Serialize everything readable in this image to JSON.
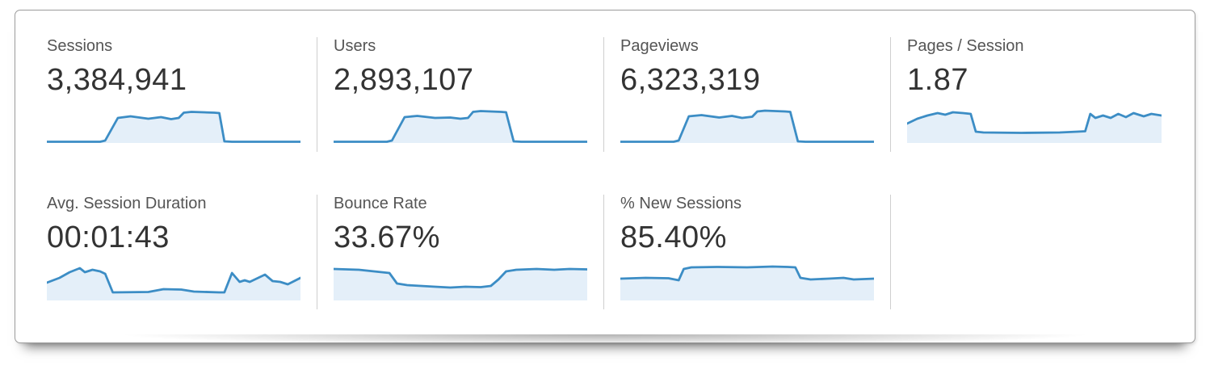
{
  "colors": {
    "spark_stroke": "#3C8DC5",
    "spark_fill": "#E4EFF9",
    "divider": "#cfcfcf",
    "label_text": "#555555",
    "value_text": "#333333"
  },
  "rows": [
    {
      "cards": [
        {
          "label": "Sessions",
          "value": "3,384,941",
          "spark": [
            [
              0,
              46.5
            ],
            [
              21,
              46.5
            ],
            [
              23,
              45
            ],
            [
              28,
              17
            ],
            [
              33,
              15
            ],
            [
              40,
              18
            ],
            [
              45,
              16
            ],
            [
              49,
              18.5
            ],
            [
              52,
              17
            ],
            [
              54,
              10.5
            ],
            [
              57,
              9.5
            ],
            [
              66,
              10.5
            ],
            [
              68,
              11
            ],
            [
              70,
              46
            ],
            [
              73,
              46.5
            ],
            [
              100,
              46.5
            ]
          ]
        },
        {
          "label": "Users",
          "value": "2,893,107",
          "spark": [
            [
              0,
              46.5
            ],
            [
              21,
              46.5
            ],
            [
              23,
              45
            ],
            [
              28,
              16
            ],
            [
              33,
              14.5
            ],
            [
              40,
              17
            ],
            [
              46,
              16.5
            ],
            [
              50,
              18
            ],
            [
              53,
              17
            ],
            [
              55,
              9.5
            ],
            [
              58,
              8.5
            ],
            [
              66,
              9.5
            ],
            [
              68,
              10
            ],
            [
              71,
              46
            ],
            [
              74,
              46.5
            ],
            [
              100,
              46.5
            ]
          ]
        },
        {
          "label": "Pageviews",
          "value": "6,323,319",
          "spark": [
            [
              0,
              46.5
            ],
            [
              21,
              46.5
            ],
            [
              23,
              45
            ],
            [
              27,
              15
            ],
            [
              32,
              13.5
            ],
            [
              39,
              16.5
            ],
            [
              44,
              14.5
            ],
            [
              48,
              17
            ],
            [
              52,
              15.5
            ],
            [
              54,
              9
            ],
            [
              57,
              8
            ],
            [
              65,
              9
            ],
            [
              67,
              9.5
            ],
            [
              70,
              46
            ],
            [
              73,
              46.5
            ],
            [
              100,
              46.5
            ]
          ]
        },
        {
          "label": "Pages / Session",
          "value": "1.87",
          "spark": [
            [
              0,
              24
            ],
            [
              4,
              18
            ],
            [
              8,
              14
            ],
            [
              12,
              11
            ],
            [
              15,
              13
            ],
            [
              18,
              10
            ],
            [
              22,
              11
            ],
            [
              25,
              12
            ],
            [
              27,
              34
            ],
            [
              30,
              35
            ],
            [
              45,
              35.5
            ],
            [
              60,
              35
            ],
            [
              67,
              34
            ],
            [
              70,
              33.5
            ],
            [
              72,
              12
            ],
            [
              74,
              17
            ],
            [
              77,
              14
            ],
            [
              80,
              17
            ],
            [
              83,
              12
            ],
            [
              86,
              16
            ],
            [
              89,
              11
            ],
            [
              93,
              15
            ],
            [
              96,
              12
            ],
            [
              100,
              14
            ]
          ]
        }
      ]
    },
    {
      "cards": [
        {
          "label": "Avg. Session Duration",
          "value": "00:01:43",
          "spark": [
            [
              0,
              26
            ],
            [
              5,
              20
            ],
            [
              9,
              13
            ],
            [
              13,
              8
            ],
            [
              15,
              13
            ],
            [
              18,
              10
            ],
            [
              21,
              12
            ],
            [
              23,
              15
            ],
            [
              26,
              38
            ],
            [
              40,
              37.5
            ],
            [
              46,
              34
            ],
            [
              53,
              34.5
            ],
            [
              58,
              37
            ],
            [
              68,
              38
            ],
            [
              70,
              38
            ],
            [
              73,
              14
            ],
            [
              76,
              25
            ],
            [
              78,
              23
            ],
            [
              80,
              25
            ],
            [
              86,
              16
            ],
            [
              89,
              24
            ],
            [
              92,
              25
            ],
            [
              95,
              28
            ],
            [
              100,
              20
            ]
          ]
        },
        {
          "label": "Bounce Rate",
          "value": "33.67%",
          "spark": [
            [
              0,
              9
            ],
            [
              10,
              10
            ],
            [
              19,
              13
            ],
            [
              22,
              14
            ],
            [
              25,
              27
            ],
            [
              29,
              29
            ],
            [
              40,
              31
            ],
            [
              46,
              32
            ],
            [
              52,
              31
            ],
            [
              58,
              31.5
            ],
            [
              62,
              30
            ],
            [
              65,
              22
            ],
            [
              68,
              12
            ],
            [
              72,
              10
            ],
            [
              80,
              9
            ],
            [
              87,
              10
            ],
            [
              93,
              9
            ],
            [
              100,
              9.5
            ]
          ]
        },
        {
          "label": "% New Sessions",
          "value": "85.40%",
          "spark": [
            [
              0,
              21
            ],
            [
              10,
              20
            ],
            [
              19,
              20.5
            ],
            [
              23,
              23
            ],
            [
              25,
              9
            ],
            [
              28,
              7
            ],
            [
              38,
              6.5
            ],
            [
              50,
              7
            ],
            [
              60,
              6
            ],
            [
              66,
              6.5
            ],
            [
              69,
              7
            ],
            [
              71,
              20
            ],
            [
              75,
              22
            ],
            [
              82,
              21
            ],
            [
              88,
              20
            ],
            [
              92,
              22
            ],
            [
              100,
              21
            ]
          ]
        }
      ]
    }
  ]
}
